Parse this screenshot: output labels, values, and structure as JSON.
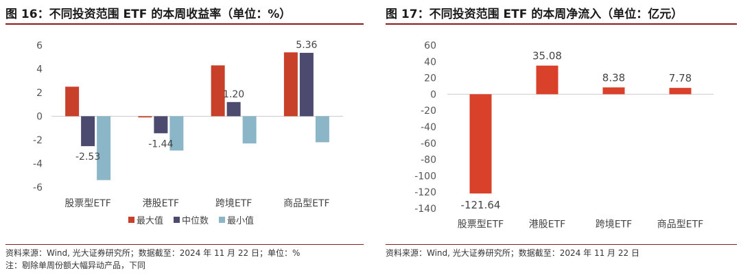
{
  "left": {
    "title": "图 16：不同投资范围 ETF 的本周收益率（单位：%）",
    "source": "资料来源：Wind, 光大证券研究所；数据截至：2024 年 11 月 22 日；单位：%",
    "note": "注：剔除单周份额大幅异动产品，下同"
  },
  "right": {
    "title": "图 17：不同投资范围 ETF 的本周净流入（单位：亿元）",
    "source": "资料来源：Wind, 光大证券研究所；数据截至：2024 年 11 月 22 日"
  },
  "chart_data": [
    {
      "type": "bar",
      "categories": [
        "股票型ETF",
        "港股ETF",
        "跨境ETF",
        "商品型ETF"
      ],
      "series": [
        {
          "name": "最大值",
          "color": "#c8402a",
          "values": [
            2.5,
            -0.1,
            4.3,
            5.4
          ]
        },
        {
          "name": "中位数",
          "color": "#4c4a6e",
          "values": [
            -2.53,
            -1.44,
            1.2,
            5.36
          ]
        },
        {
          "name": "最小值",
          "color": "#8ab6c8",
          "values": [
            -5.4,
            -2.9,
            -2.3,
            -2.2
          ]
        }
      ],
      "ylim": [
        -6,
        6
      ],
      "yticks": [
        -6,
        -4,
        -2,
        0,
        2,
        4,
        6
      ],
      "data_labels": [
        {
          "category_index": 0,
          "series_index": 1,
          "text": "-2.53"
        },
        {
          "category_index": 1,
          "series_index": 1,
          "text": "-1.44"
        },
        {
          "category_index": 2,
          "series_index": 1,
          "text": "1.20"
        },
        {
          "category_index": 3,
          "series_index": 1,
          "text": "5.36"
        }
      ],
      "legend": "bottom",
      "grid": false
    },
    {
      "type": "bar",
      "categories": [
        "股票型ETF",
        "港股ETF",
        "跨境ETF",
        "商品型ETF"
      ],
      "series": [
        {
          "color": "#d9412b",
          "values": [
            -121.64,
            35.08,
            8.38,
            7.78
          ]
        }
      ],
      "ylim": [
        -140,
        60
      ],
      "yticks": [
        -140,
        -120,
        -100,
        -80,
        -60,
        -40,
        -20,
        0,
        20,
        40,
        60
      ],
      "data_labels": [
        "-121.64",
        "35.08",
        "8.38",
        "7.78"
      ],
      "grid": false
    }
  ]
}
